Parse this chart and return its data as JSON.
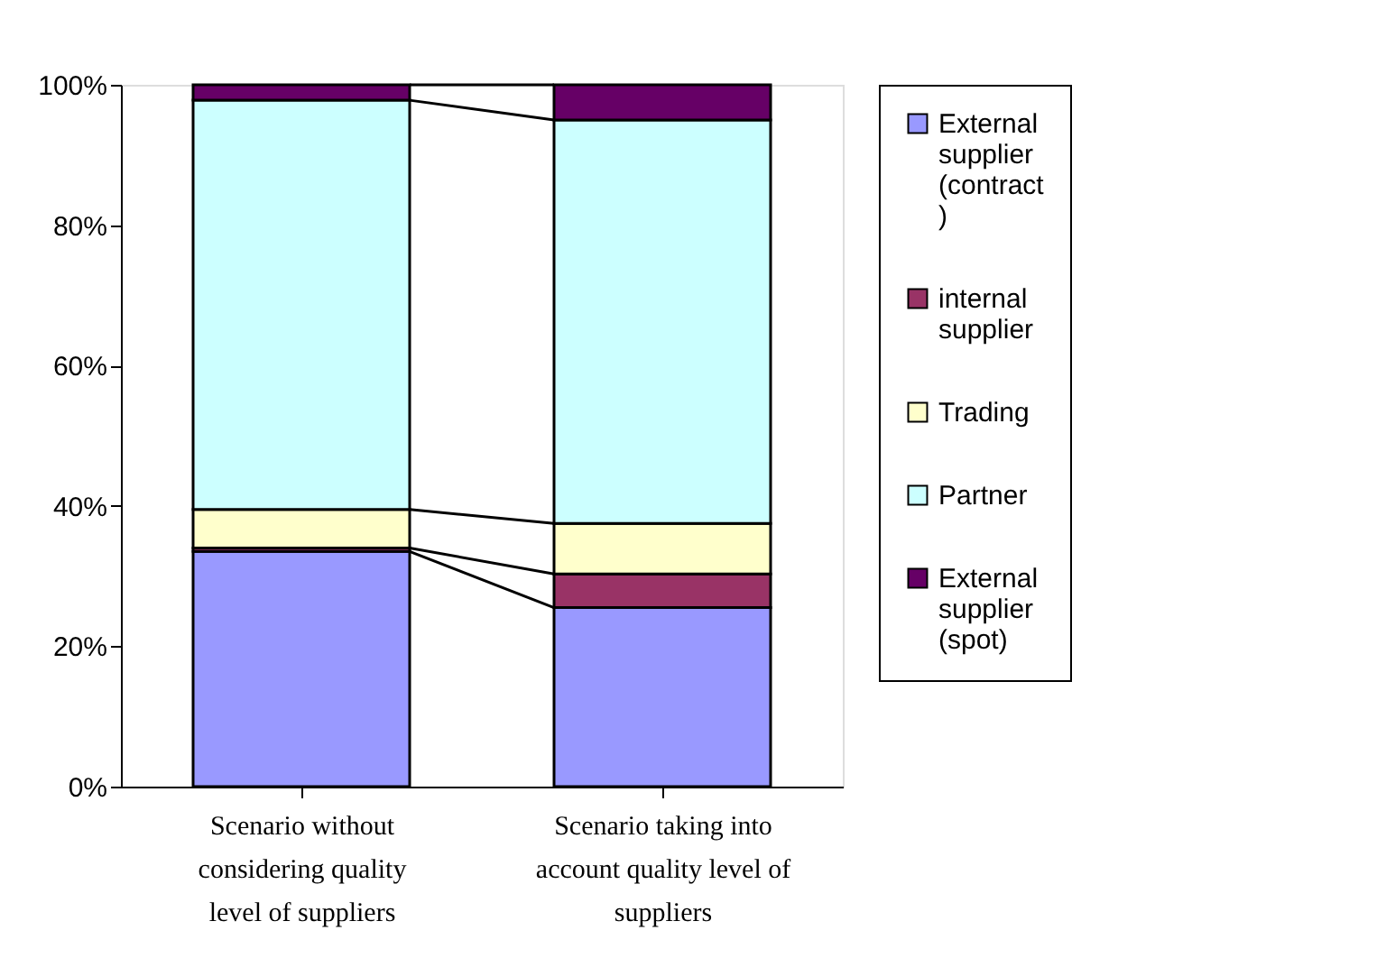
{
  "chart_data": {
    "type": "bar",
    "stacked": true,
    "categories": [
      "Scenario without considering quality level of suppliers",
      "Scenario taking into account quality level of suppliers"
    ],
    "series": [
      {
        "name": "External supplier (contract)",
        "color": "#9999ff",
        "values": [
          33.5,
          25.5
        ]
      },
      {
        "name": "internal supplier",
        "color": "#993366",
        "values": [
          0.5,
          4.8
        ]
      },
      {
        "name": "Trading",
        "color": "#ffffcc",
        "values": [
          5.5,
          7.2
        ]
      },
      {
        "name": "Partner",
        "color": "#ccffff",
        "values": [
          58.3,
          57.5
        ]
      },
      {
        "name": "External supplier (spot)",
        "color": "#660066",
        "values": [
          2.2,
          5.0
        ]
      }
    ],
    "ylim": [
      0,
      100
    ],
    "yticks": [
      {
        "value": 0,
        "label": "0%"
      },
      {
        "value": 20,
        "label": "20%"
      },
      {
        "value": 40,
        "label": "40%"
      },
      {
        "value": 60,
        "label": "60%"
      },
      {
        "value": 80,
        "label": "80%"
      },
      {
        "value": 100,
        "label": "100%"
      }
    ],
    "grid": false,
    "legend": "right"
  }
}
